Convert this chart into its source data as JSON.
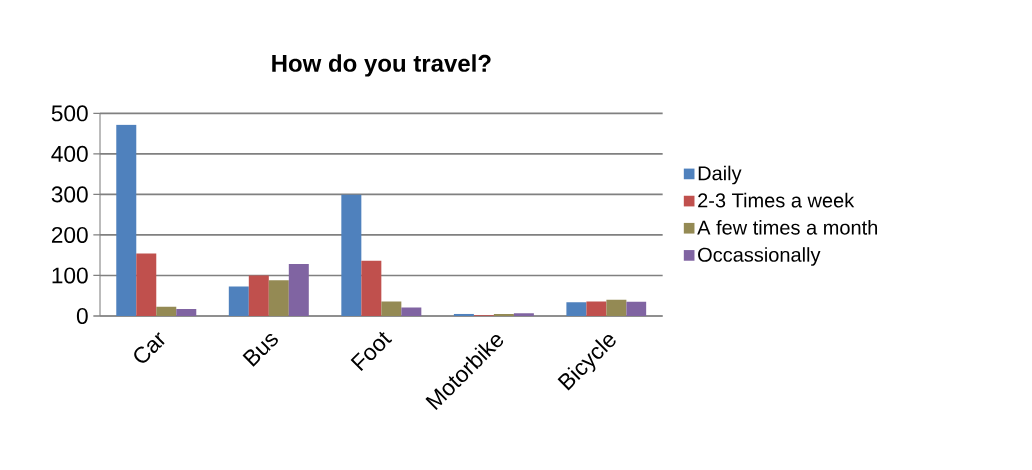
{
  "chart_data": {
    "type": "bar",
    "title": "How do you travel?",
    "categories": [
      "Car",
      "Bus",
      "Foot",
      "Motorbike",
      "Bicycle"
    ],
    "series": [
      {
        "name": "Daily",
        "color": "#4f81bd",
        "values": [
          472,
          73,
          299,
          5,
          34
        ]
      },
      {
        "name": "2-3 Times a week",
        "color": "#c0504d",
        "values": [
          154,
          100,
          136,
          2,
          36
        ]
      },
      {
        "name": "A few times a month",
        "color": "#948a54",
        "values": [
          23,
          88,
          36,
          5,
          40
        ]
      },
      {
        "name": "Occassionally",
        "color": "#8064a2",
        "values": [
          17,
          128,
          21,
          7,
          35
        ]
      }
    ],
    "ylim": [
      0,
      500
    ],
    "yticks": [
      0,
      100,
      200,
      300,
      400,
      500
    ],
    "grid": "y",
    "legend": "right"
  }
}
